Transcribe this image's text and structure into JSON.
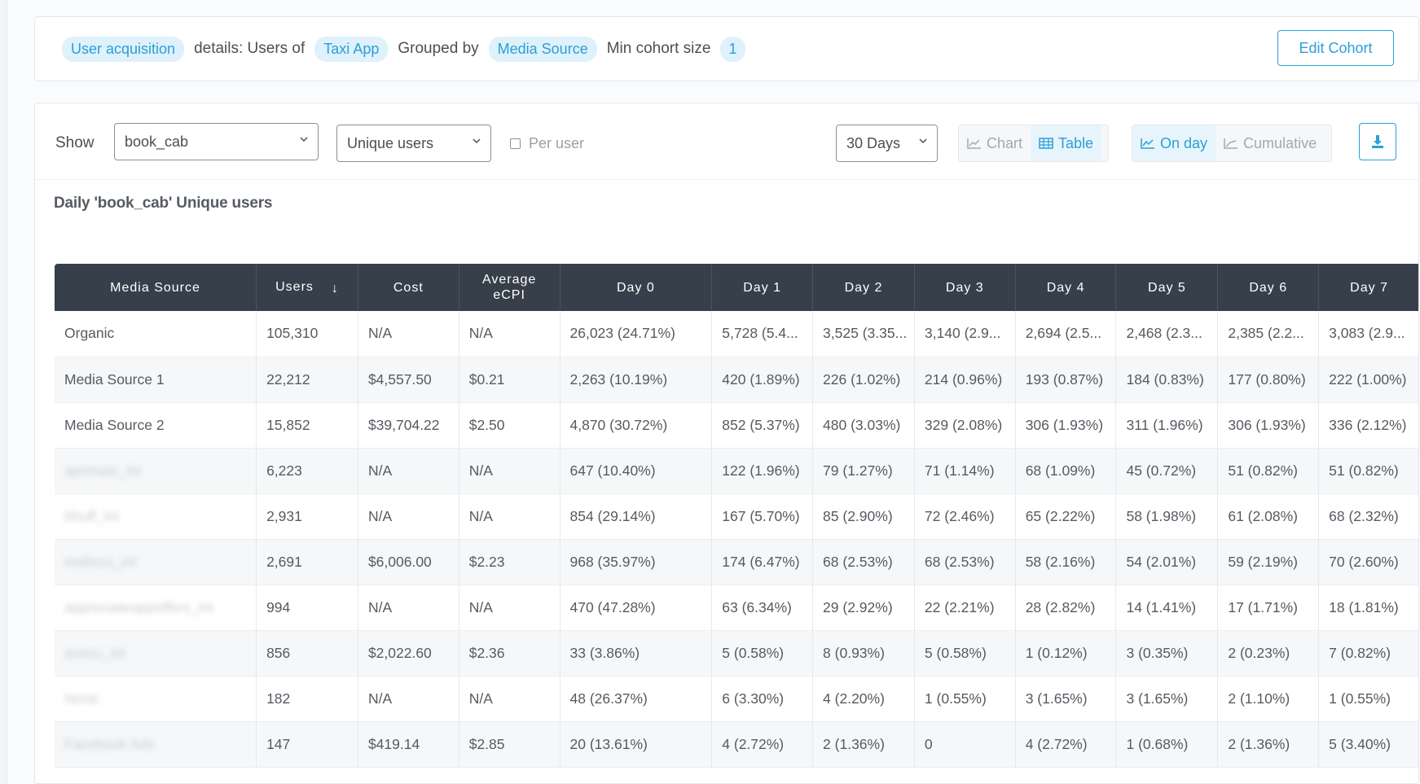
{
  "cohort": {
    "pill_type": "User acquisition",
    "text_details": "details: Users of",
    "pill_app": "Taxi App",
    "text_grouped": "Grouped by",
    "pill_group": "Media Source",
    "text_min": "Min cohort size",
    "pill_min": "1",
    "edit_label": "Edit Cohort"
  },
  "toolbar": {
    "show_label": "Show",
    "event_value": "book_cab",
    "metric_value": "Unique users",
    "per_user_label": "Per user",
    "range_value": "30 Days",
    "view_chart": "Chart",
    "view_table": "Table",
    "mode_onday": "On day",
    "mode_cumulative": "Cumulative"
  },
  "title": "Daily 'book_cab' Unique users",
  "table": {
    "headers": [
      "Media Source",
      "Users",
      "Cost",
      "Average eCPI",
      "Day 0",
      "Day 1",
      "Day 2",
      "Day 3",
      "Day 4",
      "Day 5",
      "Day 6",
      "Day 7"
    ],
    "rows": [
      {
        "source": "Organic",
        "blurred": false,
        "users": "105,310",
        "cost": "N/A",
        "ecpi": "N/A",
        "days": [
          "26,023 (24.71%)",
          "5,728 (5.4...",
          "3,525 (3.35...",
          "3,140 (2.9...",
          "2,694 (2.5...",
          "2,468 (2.3...",
          "2,385 (2.2...",
          "3,083 (2.9..."
        ]
      },
      {
        "source": "Media Source 1",
        "blurred": false,
        "users": "22,212",
        "cost": "$4,557.50",
        "ecpi": "$0.21",
        "days": [
          "2,263 (10.19%)",
          "420 (1.89%)",
          "226 (1.02%)",
          "214 (0.96%)",
          "193 (0.87%)",
          "184 (0.83%)",
          "177 (0.80%)",
          "222 (1.00%)"
        ]
      },
      {
        "source": "Media Source 2",
        "blurred": false,
        "users": "15,852",
        "cost": "$39,704.22",
        "ecpi": "$2.50",
        "days": [
          "4,870 (30.72%)",
          "852 (5.37%)",
          "480 (3.03%)",
          "329 (2.08%)",
          "306 (1.93%)",
          "311 (1.96%)",
          "306 (1.93%)",
          "336 (2.12%)"
        ]
      },
      {
        "source": "apnmasi_int",
        "blurred": true,
        "users": "6,223",
        "cost": "N/A",
        "ecpi": "N/A",
        "days": [
          "647 (10.40%)",
          "122 (1.96%)",
          "79 (1.27%)",
          "71 (1.14%)",
          "68 (1.09%)",
          "45 (0.72%)",
          "51 (0.82%)",
          "51 (0.82%)"
        ]
      },
      {
        "source": "bhuff_int",
        "blurred": true,
        "users": "2,931",
        "cost": "N/A",
        "ecpi": "N/A",
        "days": [
          "854 (29.14%)",
          "167 (5.70%)",
          "85 (2.90%)",
          "72 (2.46%)",
          "65 (2.22%)",
          "58 (1.98%)",
          "61 (2.08%)",
          "68 (2.32%)"
        ]
      },
      {
        "source": "mobvcs_int",
        "blurred": true,
        "users": "2,691",
        "cost": "$6,006.00",
        "ecpi": "$2.23",
        "days": [
          "968 (35.97%)",
          "174 (6.47%)",
          "68 (2.53%)",
          "68 (2.53%)",
          "58 (2.16%)",
          "54 (2.01%)",
          "59 (2.19%)",
          "70 (2.60%)"
        ]
      },
      {
        "source": "appreciateappoffers_int",
        "blurred": true,
        "users": "994",
        "cost": "N/A",
        "ecpi": "N/A",
        "days": [
          "470 (47.28%)",
          "63 (6.34%)",
          "29 (2.92%)",
          "22 (2.21%)",
          "28 (2.82%)",
          "14 (1.41%)",
          "17 (1.71%)",
          "18 (1.81%)"
        ]
      },
      {
        "source": "avazu_int",
        "blurred": true,
        "users": "856",
        "cost": "$2,022.60",
        "ecpi": "$2.36",
        "days": [
          "33 (3.86%)",
          "5 (0.58%)",
          "8 (0.93%)",
          "5 (0.58%)",
          "1 (0.12%)",
          "3 (0.35%)",
          "2 (0.23%)",
          "7 (0.82%)"
        ]
      },
      {
        "source": "None",
        "blurred": true,
        "users": "182",
        "cost": "N/A",
        "ecpi": "N/A",
        "days": [
          "48 (26.37%)",
          "6 (3.30%)",
          "4 (2.20%)",
          "1 (0.55%)",
          "3 (1.65%)",
          "3 (1.65%)",
          "2 (1.10%)",
          "1 (0.55%)"
        ]
      },
      {
        "source": "Facebook Ads",
        "blurred": true,
        "users": "147",
        "cost": "$419.14",
        "ecpi": "$2.85",
        "days": [
          "20 (13.61%)",
          "4 (2.72%)",
          "2 (1.36%)",
          "0",
          "4 (2.72%)",
          "1 (0.68%)",
          "2 (1.36%)",
          "5 (3.40%)"
        ]
      }
    ]
  },
  "colors": {
    "accent": "#2a9fd8",
    "header_bg": "#37404a"
  }
}
